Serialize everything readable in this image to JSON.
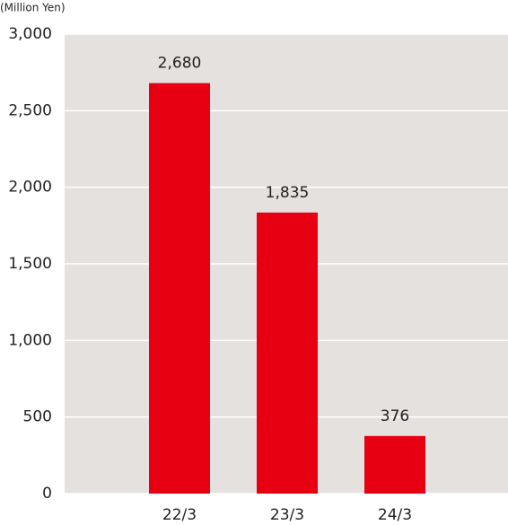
{
  "chart_data": {
    "type": "bar",
    "y_axis_label": "(Million Yen)",
    "categories": [
      "22/3",
      "23/3",
      "24/3"
    ],
    "values": [
      2680,
      1835,
      376
    ],
    "value_labels": [
      "2,680",
      "1,835",
      "376"
    ],
    "color": "#e60012",
    "ylim": [
      0,
      3000
    ],
    "yticks": [
      0,
      500,
      {
        "value": 1000,
        "label": "1,000"
      },
      {
        "value": 1500,
        "label": "1,500"
      },
      {
        "value": 2000,
        "label": "2,000"
      },
      {
        "value": 2500,
        "label": "2,500"
      },
      {
        "value": 3000,
        "label": "3,000"
      }
    ],
    "grid": true
  }
}
